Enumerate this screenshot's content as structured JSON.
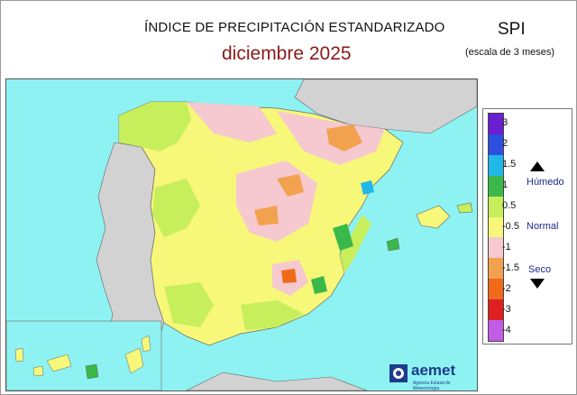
{
  "header": {
    "title": "ÍNDICE DE PRECIPITACIÓN ESTANDARIZADO",
    "subtitle": "diciembre  2025",
    "index_label": "SPI",
    "scale_note": "(escala de 3 meses)"
  },
  "legend": {
    "ticks": [
      "3",
      "2",
      "1.5",
      "1",
      "0.5",
      "-0.5",
      "-1",
      "-1.5",
      "-2",
      "-3",
      "-4"
    ],
    "colors": [
      "#6a1fd1",
      "#2d4fe0",
      "#1fb8e8",
      "#3ab84a",
      "#c7ee5b",
      "#f7f77a",
      "#f5c9cf",
      "#f2a24f",
      "#f06a1a",
      "#e02020",
      "#c25be6"
    ],
    "humid_label": "Húmedo",
    "normal_label": "Normal",
    "dry_label": "Seco"
  },
  "colors": {
    "sea": "#8ef2f2",
    "land_other": "#d2d2d2",
    "normal": "#f7f77a",
    "light_wet": "#c7ee5b",
    "wet": "#3ab84a",
    "very_wet": "#1fb8e8",
    "light_dry": "#f5c9cf",
    "dry": "#f2a24f",
    "very_dry": "#f06a1a"
  },
  "logo": {
    "name": "aemet",
    "tagline": "Agencia Estatal de Meteorología"
  }
}
